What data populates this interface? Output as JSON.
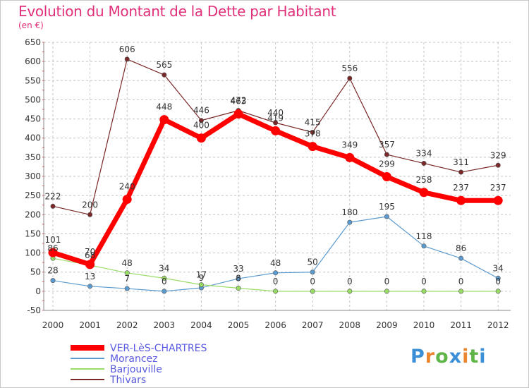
{
  "header": {
    "title": "Evolution du Montant de la Dette par Habitant",
    "subtitle": "(en €)"
  },
  "logo": {
    "letters": [
      "P",
      "r",
      "o",
      "x",
      "i",
      "t",
      "i"
    ]
  },
  "colors": {
    "title": "#e0307a",
    "legend_text": "#5a5ae0",
    "grid": "#bbbbbb"
  },
  "chart_data": {
    "type": "line",
    "title": "Evolution du Montant de la Dette par Habitant",
    "subtitle": "(en €)",
    "xlabel": "",
    "ylabel": "",
    "categories": [
      "2000",
      "2001",
      "2002",
      "2003",
      "2004",
      "2005",
      "2006",
      "2007",
      "2008",
      "2009",
      "2010",
      "2011",
      "2012"
    ],
    "ylim": [
      -50,
      650
    ],
    "yticks": [
      -50,
      0,
      50,
      100,
      150,
      200,
      250,
      300,
      350,
      400,
      450,
      500,
      550,
      600,
      650
    ],
    "grid": true,
    "legend_position": "bottom-left",
    "series": [
      {
        "name": "VER-LèS-CHARTRES",
        "values": [
          101,
          70,
          240,
          448,
          400,
          463,
          419,
          378,
          349,
          299,
          258,
          237,
          237
        ],
        "labels": [
          "101",
          "70",
          "240",
          "448",
          "400",
          "463",
          "419",
          "378",
          "349",
          "299",
          "258",
          "237",
          "237"
        ],
        "color": "#ff0000",
        "width": 7
      },
      {
        "name": "Morancez",
        "values": [
          28,
          13,
          7,
          0,
          9,
          33,
          48,
          50,
          180,
          195,
          118,
          86,
          34
        ],
        "labels": [
          "28",
          "13",
          "7",
          "0",
          "9",
          "33",
          "48",
          "50",
          "180",
          "195",
          "118",
          "86",
          "34"
        ],
        "color": "#5b9bd0",
        "width": 1.2
      },
      {
        "name": "Barjouville",
        "values": [
          86,
          68,
          48,
          34,
          17,
          8,
          0,
          0,
          0,
          0,
          0,
          0,
          0
        ],
        "labels": [
          "86",
          "68",
          "48",
          "34",
          "17",
          "8",
          "0",
          "0",
          "0",
          "0",
          "0",
          "0",
          "0"
        ],
        "color": "#99dd66",
        "width": 1.2
      },
      {
        "name": "Thivars",
        "values": [
          222,
          200,
          606,
          565,
          446,
          472,
          440,
          415,
          556,
          357,
          334,
          311,
          329
        ],
        "labels": [
          "222",
          "200",
          "606",
          "565",
          "446",
          "472",
          "440",
          "415",
          "556",
          "357",
          "334",
          "311",
          "329"
        ],
        "color": "#7a2828",
        "width": 1.2
      }
    ]
  }
}
